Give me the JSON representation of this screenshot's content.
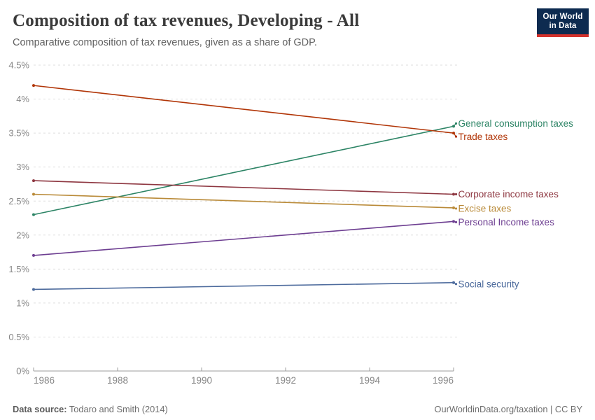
{
  "header": {
    "title": "Composition of tax revenues, Developing - All",
    "subtitle": "Comparative composition of tax revenues, given as a share of GDP."
  },
  "logo": {
    "line1": "Our World",
    "line2": "in Data",
    "bg": "#0d2b50",
    "accent": "#d4322c"
  },
  "footer": {
    "datasource_label": "Data source:",
    "datasource_value": " Todaro and Smith (2014)",
    "right": "OurWorldinData.org/taxation | CC BY"
  },
  "chart_data": {
    "type": "line",
    "x": [
      1986,
      1996
    ],
    "xlim": [
      1986,
      1996
    ],
    "ylim": [
      0,
      4.5
    ],
    "xticks": [
      1986,
      1988,
      1990,
      1992,
      1994,
      1996
    ],
    "yticks": [
      0,
      0.5,
      1,
      1.5,
      2,
      2.5,
      3,
      3.5,
      4,
      4.5
    ],
    "grid": true,
    "legend_position": "right-inline-labels",
    "unit": "%",
    "series": [
      {
        "name": "General consumption taxes",
        "color": "#2C8465",
        "values": [
          2.3,
          3.6
        ],
        "label_dy": -4
      },
      {
        "name": "Trade taxes",
        "color": "#B13507",
        "values": [
          4.2,
          3.5
        ],
        "label_dy": 5
      },
      {
        "name": "Corporate income taxes",
        "color": "#8E3741",
        "values": [
          2.8,
          2.6
        ],
        "label_dy": 0
      },
      {
        "name": "Excise taxes",
        "color": "#B98A38",
        "values": [
          2.6,
          2.4
        ],
        "label_dy": 1
      },
      {
        "name": "Personal Income taxes",
        "color": "#6D3E91",
        "values": [
          1.7,
          2.2
        ],
        "label_dy": 1
      },
      {
        "name": "Social security",
        "color": "#4C6A9C",
        "values": [
          1.2,
          1.3
        ],
        "label_dy": 2
      }
    ],
    "axis_color": "#9d9d9d",
    "grid_color": "#dddddd",
    "tick_label_color": "#878787"
  }
}
